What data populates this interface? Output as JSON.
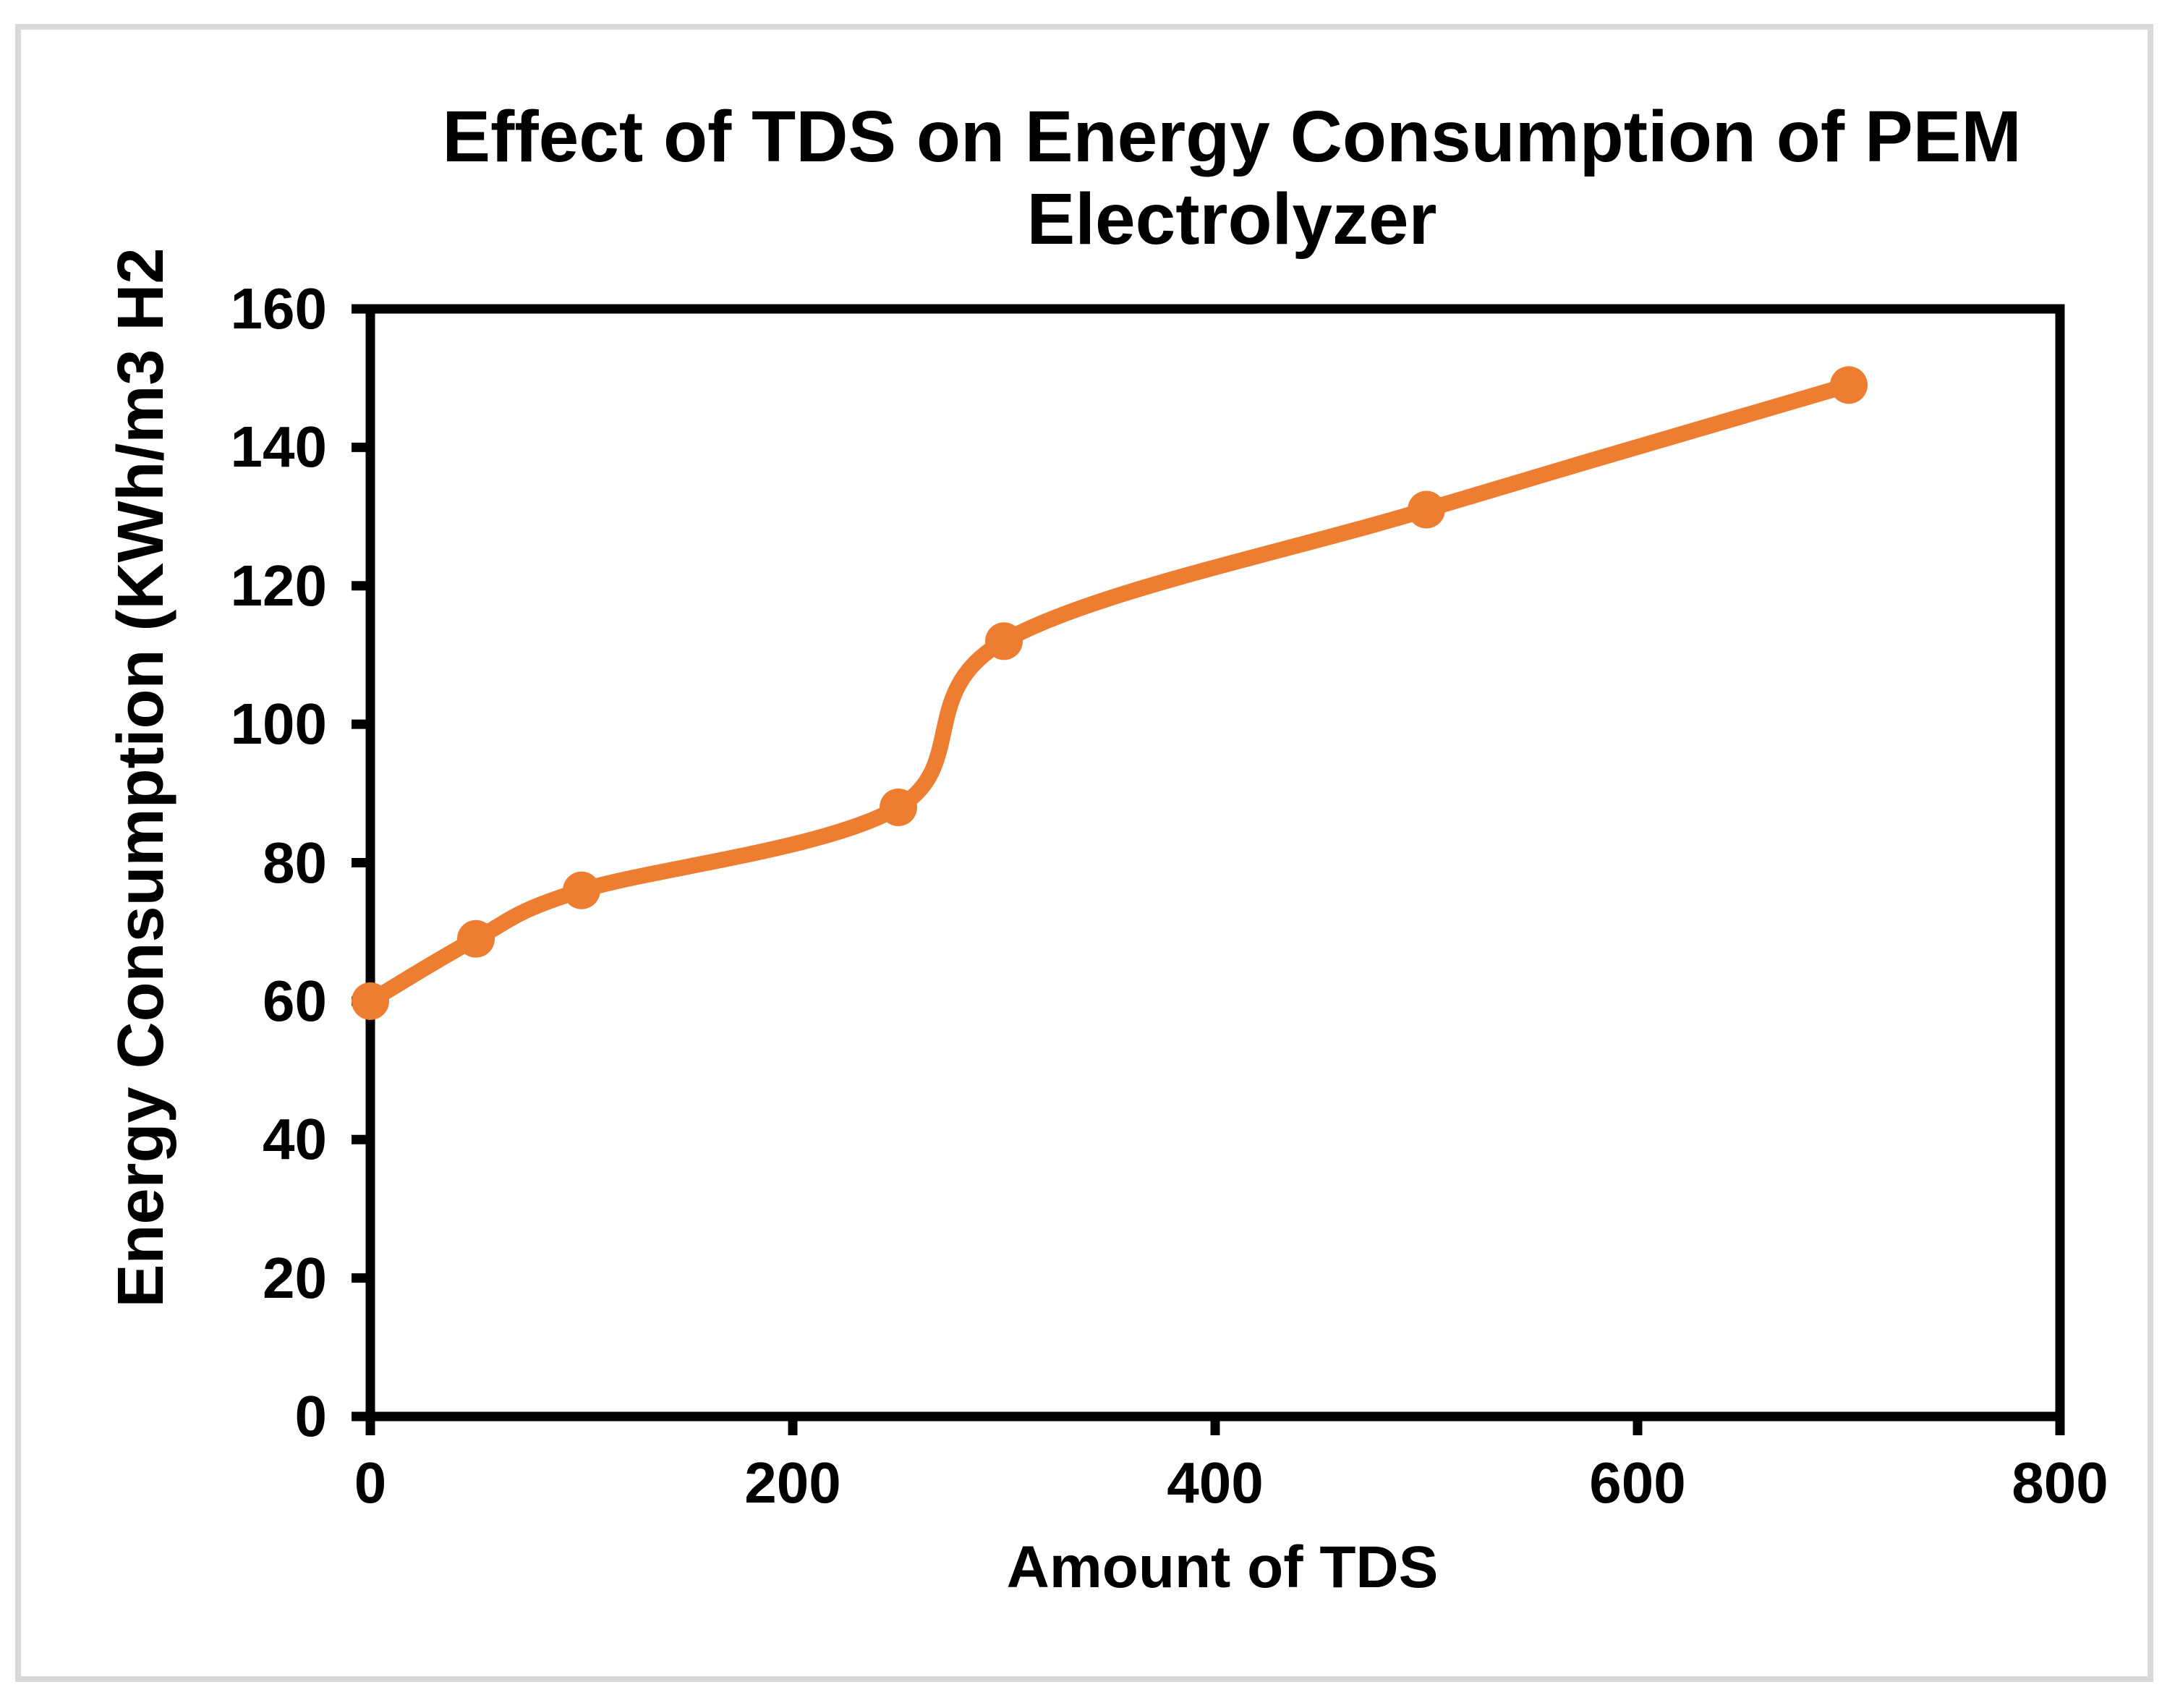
{
  "page": {
    "background_color": "#ffffff",
    "frame_border_color": "#d9d9d9"
  },
  "chart": {
    "title_line1": "Effect of TDS on Energy Consumption of PEM",
    "title_line2": "Electrolyzer",
    "x_axis_title": "Amount of TDS",
    "y_axis_title": "Energy Consumption (KWh/m3 H2"
  },
  "chart_data": {
    "type": "line",
    "title": "Effect of TDS on Energy Consumption of PEM Electrolyzer",
    "xlabel": "Amount of TDS",
    "ylabel": "Energy Consumption (KWh/m3 H2",
    "series": [
      {
        "name": "Energy Consumption",
        "x": [
          0,
          50,
          100,
          250,
          300,
          500,
          700
        ],
        "y": [
          60,
          69,
          76,
          88,
          112,
          131,
          149
        ]
      }
    ],
    "xlim": [
      0,
      800
    ],
    "ylim": [
      0,
      160
    ],
    "x_ticks": [
      0,
      200,
      400,
      600,
      800
    ],
    "y_ticks": [
      0,
      20,
      40,
      60,
      80,
      100,
      120,
      140,
      160
    ],
    "grid": false,
    "legend": false,
    "smooth": true,
    "line_color": "#ED7D31",
    "marker_color": "#ED7D31",
    "axis_color": "#000000",
    "plot_border": "box",
    "tick_style": "outside"
  }
}
